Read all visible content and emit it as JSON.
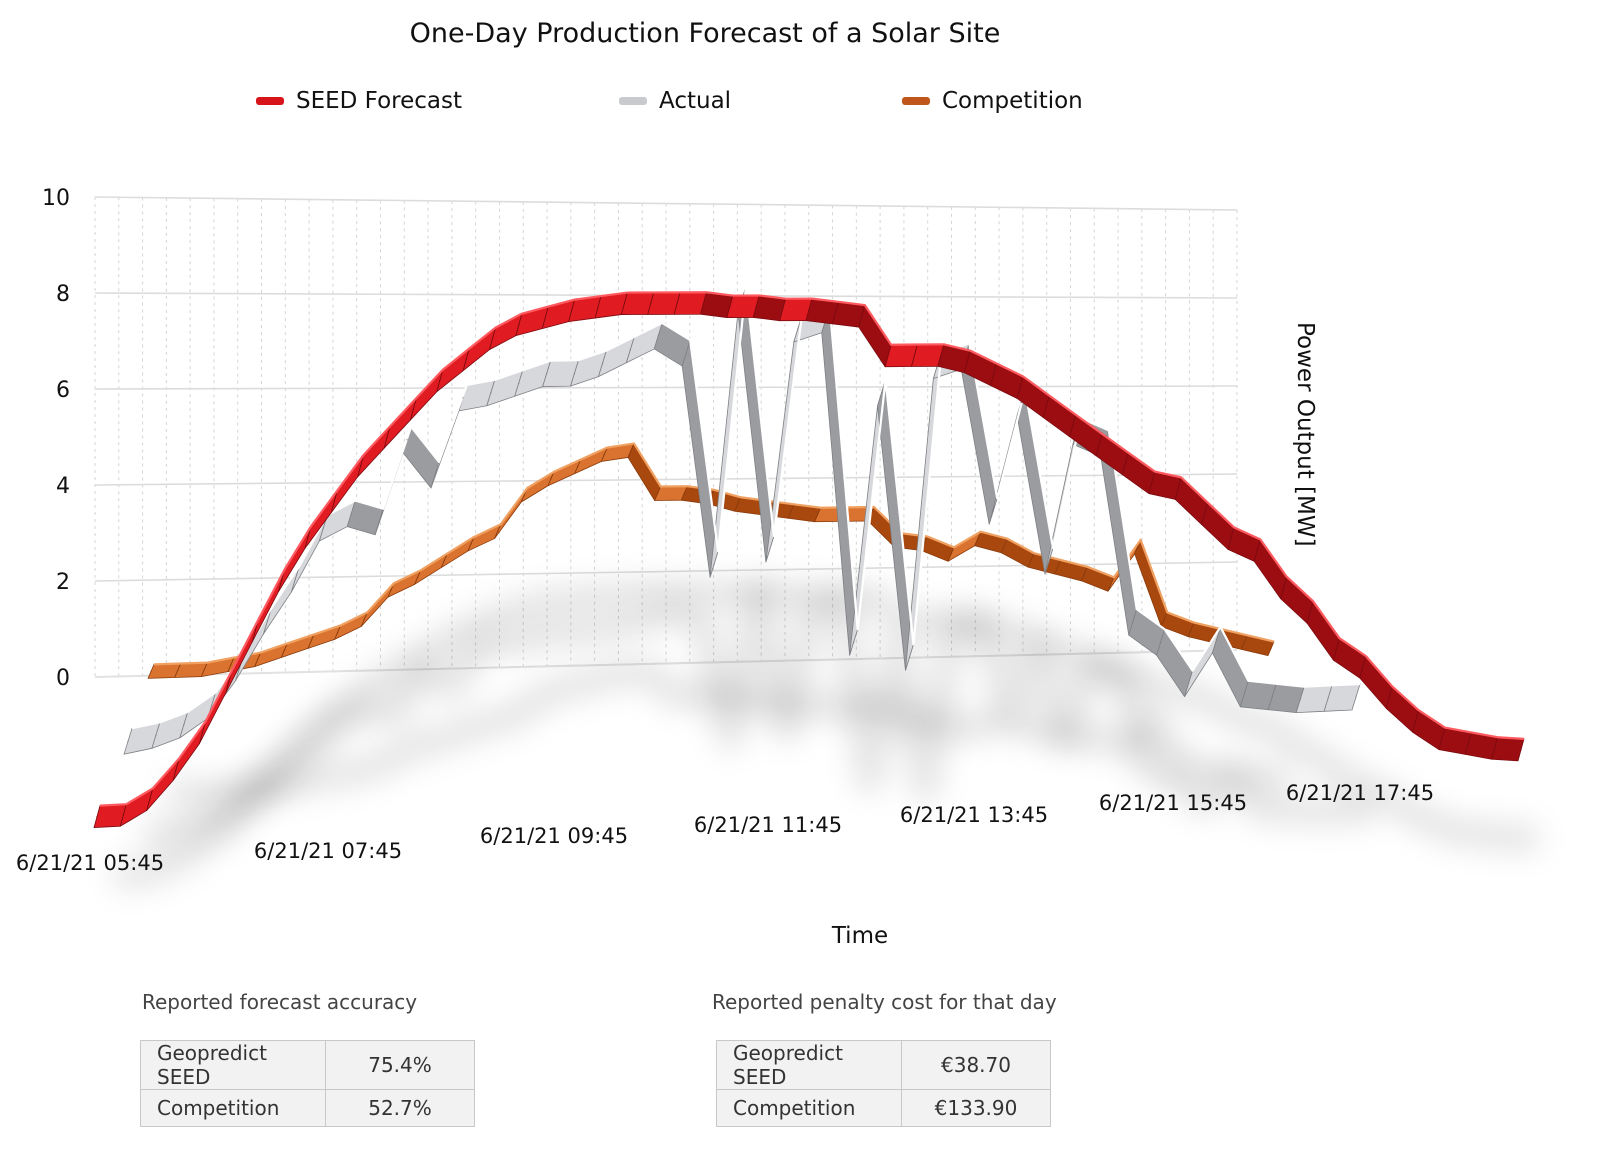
{
  "chart_data": {
    "type": "line",
    "title": "One-Day Production Forecast of a Solar Site",
    "xlabel": "Time",
    "ylabel": "Power Output [MW]",
    "ylim": [
      0,
      10
    ],
    "yticks": [
      0,
      2,
      4,
      6,
      8,
      10
    ],
    "grid": true,
    "legend_position": "top",
    "x_tick_labels": [
      "6/21/21 05:45",
      "6/21/21 07:45",
      "6/21/21 09:45",
      "6/21/21 11:45",
      "6/21/21 13:45",
      "6/21/21 15:45",
      "6/21/21 17:45"
    ],
    "series": [
      {
        "name": "SEED Forecast",
        "color": "#d7141a",
        "values": [
          0.2,
          0.2,
          0.4,
          0.8,
          1.3,
          2.0,
          2.7,
          3.4,
          4.0,
          4.5,
          5.0,
          5.4,
          5.8,
          6.2,
          6.5,
          6.8,
          7.0,
          7.1,
          7.2,
          7.25,
          7.3,
          7.3,
          7.3,
          7.3,
          7.25,
          7.25,
          7.2,
          7.2,
          7.15,
          7.1,
          6.5,
          6.5,
          6.5,
          6.4,
          6.2,
          6.0,
          5.7,
          5.4,
          5.1,
          4.8,
          4.5,
          4.4,
          4.0,
          3.6,
          3.4,
          2.8,
          2.4,
          1.8,
          1.5,
          1.0,
          0.6,
          0.3,
          0.2,
          0.1,
          0.05
        ]
      },
      {
        "name": "Actual",
        "color": "#bcbec2",
        "values": [
          0.3,
          0.4,
          0.6,
          1.0,
          1.8,
          2.8,
          3.7,
          4.8,
          5.1,
          4.9,
          6.7,
          5.9,
          7.6,
          7.7,
          7.9,
          8.1,
          8.1,
          8.3,
          8.6,
          8.9,
          8.5,
          3.7,
          9.7,
          4.0,
          9.0,
          9.2,
          1.8,
          7.5,
          1.4,
          8.1,
          8.3,
          4.7,
          7.2,
          3.5,
          6.5,
          6.2,
          2.0,
          1.5,
          0.5,
          1.5,
          0.2,
          0.1,
          0.0,
          0.0,
          0.0
        ]
      },
      {
        "name": "Competition",
        "color": "#c0561c",
        "values": [
          0.8,
          0.8,
          0.8,
          0.9,
          1.0,
          1.2,
          1.4,
          1.6,
          1.9,
          2.6,
          2.9,
          3.3,
          3.7,
          4.0,
          4.9,
          5.3,
          5.6,
          5.9,
          6.0,
          4.9,
          4.9,
          4.8,
          4.6,
          4.5,
          4.4,
          4.3,
          4.3,
          4.3,
          3.6,
          3.5,
          3.2,
          3.6,
          3.4,
          3.0,
          2.8,
          2.6,
          2.3,
          3.3,
          1.3,
          1.0,
          0.8,
          0.6,
          0.4
        ]
      }
    ]
  },
  "legend": [
    {
      "label": "SEED Forecast",
      "color": "#d7141a"
    },
    {
      "label": "Actual",
      "color": "#bcbec2"
    },
    {
      "label": "Competition",
      "color": "#c0561c"
    }
  ],
  "accuracy": {
    "heading": "Reported forecast accuracy",
    "rows": [
      {
        "name": "Geopredict SEED",
        "value": "75.4%"
      },
      {
        "name": "Competition",
        "value": "52.7%"
      }
    ]
  },
  "penalty": {
    "heading": "Reported penalty cost for that day",
    "rows": [
      {
        "name": "Geopredict SEED",
        "value": "€38.70"
      },
      {
        "name": "Competition",
        "value": "€133.90"
      }
    ]
  }
}
